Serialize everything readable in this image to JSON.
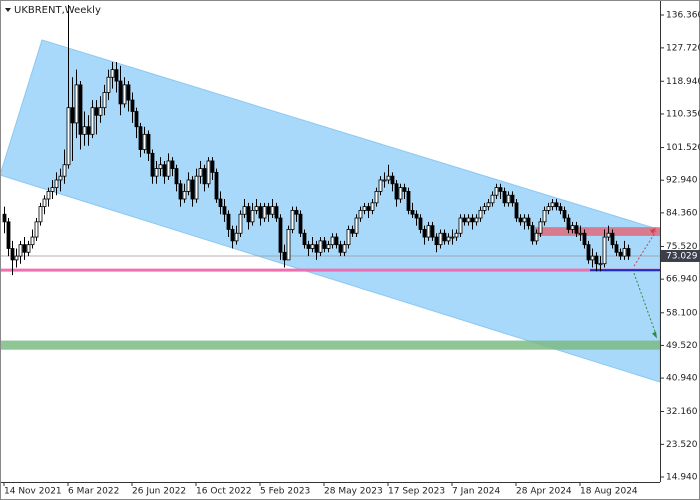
{
  "chart_data": {
    "type": "candlestick",
    "title": "UKBRENT,Weekly",
    "categories": [
      "14 Nov 2021",
      null,
      null,
      null,
      null,
      null,
      null,
      null,
      null,
      null,
      null,
      null,
      null,
      null,
      null,
      null,
      "6 Mar 2022",
      null,
      null,
      null,
      null,
      null,
      null,
      null,
      null,
      null,
      null,
      null,
      null,
      null,
      null,
      null,
      "26 Jun 2022",
      null,
      null,
      null,
      null,
      null,
      null,
      null,
      null,
      null,
      null,
      null,
      null,
      null,
      null,
      null,
      "16 Oct 2022",
      null,
      null,
      null,
      null,
      null,
      null,
      null,
      null,
      null,
      null,
      null,
      null,
      null,
      null,
      null,
      "5 Feb 2023",
      null,
      null,
      null,
      null,
      null,
      null,
      null,
      null,
      null,
      null,
      null,
      null,
      null,
      null,
      null,
      "28 May 2023",
      null,
      null,
      null,
      null,
      null,
      null,
      null,
      null,
      null,
      null,
      null,
      null,
      null,
      null,
      null,
      "17 Sep 2023",
      null,
      null,
      null,
      null,
      null,
      null,
      null,
      null,
      null,
      null,
      null,
      null,
      null,
      null,
      null,
      "7 Jan 2024",
      null,
      null,
      null,
      null,
      null,
      null,
      null,
      null,
      null,
      null,
      null,
      null,
      null,
      null,
      null,
      "28 Apr 2024",
      null,
      null,
      null,
      null,
      null,
      null,
      null,
      null,
      null,
      null,
      null,
      null,
      null,
      null,
      null,
      "18 Aug 2024",
      null,
      null,
      null,
      null,
      null,
      null,
      null,
      null,
      null,
      null,
      null,
      null
    ],
    "candles": [
      [
        84,
        86,
        79,
        82
      ],
      [
        82,
        83,
        73,
        75
      ],
      [
        75,
        77,
        68,
        72
      ],
      [
        72,
        75,
        70,
        73
      ],
      [
        73,
        77,
        71,
        76
      ],
      [
        76,
        78,
        72,
        74
      ],
      [
        74,
        77,
        73,
        76
      ],
      [
        76,
        80,
        75,
        78
      ],
      [
        78,
        83,
        77,
        82
      ],
      [
        82,
        87,
        81,
        86
      ],
      [
        86,
        89,
        84,
        88
      ],
      [
        88,
        91,
        86,
        90
      ],
      [
        90,
        93,
        88,
        91
      ],
      [
        91,
        95,
        89,
        93
      ],
      [
        93,
        96,
        90,
        94
      ],
      [
        94,
        101,
        92,
        97
      ],
      [
        97,
        139,
        96,
        112
      ],
      [
        112,
        120,
        98,
        108
      ],
      [
        108,
        122,
        104,
        118
      ],
      [
        118,
        119,
        101,
        105
      ],
      [
        105,
        111,
        102,
        107
      ],
      [
        107,
        110,
        102,
        105
      ],
      [
        105,
        114,
        104,
        112
      ],
      [
        112,
        114,
        105,
        110
      ],
      [
        110,
        115,
        108,
        112
      ],
      [
        112,
        118,
        110,
        116
      ],
      [
        116,
        122,
        114,
        120
      ],
      [
        120,
        124,
        117,
        122
      ],
      [
        122,
        124,
        116,
        119
      ],
      [
        119,
        123,
        110,
        113
      ],
      [
        113,
        120,
        112,
        118
      ],
      [
        118,
        119,
        111,
        114
      ],
      [
        114,
        116,
        108,
        111
      ],
      [
        111,
        112,
        104,
        107
      ],
      [
        107,
        108,
        99,
        101
      ],
      [
        101,
        107,
        100,
        105
      ],
      [
        105,
        106,
        98,
        100
      ],
      [
        100,
        101,
        92,
        94
      ],
      [
        94,
        98,
        92,
        96
      ],
      [
        96,
        99,
        94,
        97
      ],
      [
        97,
        98,
        92,
        94
      ],
      [
        94,
        100,
        93,
        98
      ],
      [
        98,
        99,
        94,
        96
      ],
      [
        96,
        97,
        90,
        92
      ],
      [
        92,
        93,
        86,
        88
      ],
      [
        88,
        92,
        87,
        90
      ],
      [
        90,
        95,
        89,
        93
      ],
      [
        93,
        94,
        86,
        88
      ],
      [
        88,
        96,
        87,
        94
      ],
      [
        94,
        98,
        92,
        96
      ],
      [
        96,
        97,
        90,
        92
      ],
      [
        92,
        99,
        91,
        98
      ],
      [
        98,
        99,
        93,
        95
      ],
      [
        95,
        96,
        87,
        88
      ],
      [
        88,
        90,
        84,
        86
      ],
      [
        86,
        88,
        82,
        84
      ],
      [
        84,
        85,
        78,
        80
      ],
      [
        80,
        81,
        75,
        77
      ],
      [
        77,
        81,
        76,
        79
      ],
      [
        79,
        85,
        78,
        84
      ],
      [
        84,
        88,
        83,
        86
      ],
      [
        86,
        87,
        80,
        82
      ],
      [
        82,
        87,
        81,
        85
      ],
      [
        85,
        88,
        84,
        86
      ],
      [
        86,
        87,
        81,
        83
      ],
      [
        83,
        87,
        82,
        86
      ],
      [
        86,
        87,
        82,
        84
      ],
      [
        84,
        88,
        83,
        86
      ],
      [
        86,
        87,
        82,
        83
      ],
      [
        83,
        84,
        72,
        74
      ],
      [
        74,
        76,
        70,
        72
      ],
      [
        72,
        81,
        72,
        80
      ],
      [
        80,
        86,
        79,
        85
      ],
      [
        85,
        86,
        82,
        84
      ],
      [
        84,
        85,
        78,
        79
      ],
      [
        79,
        80,
        75,
        76
      ],
      [
        76,
        77,
        73,
        75
      ],
      [
        75,
        78,
        74,
        76
      ],
      [
        76,
        77,
        72,
        74
      ],
      [
        74,
        78,
        73,
        77
      ],
      [
        77,
        78,
        74,
        75
      ],
      [
        75,
        77,
        74,
        76
      ],
      [
        76,
        79,
        75,
        78
      ],
      [
        78,
        79,
        75,
        76
      ],
      [
        76,
        77,
        73,
        74
      ],
      [
        74,
        77,
        73,
        76
      ],
      [
        76,
        81,
        75,
        80
      ],
      [
        80,
        81,
        78,
        79
      ],
      [
        79,
        84,
        78,
        83
      ],
      [
        83,
        86,
        82,
        85
      ],
      [
        85,
        87,
        84,
        86
      ],
      [
        86,
        87,
        83,
        85
      ],
      [
        85,
        88,
        84,
        87
      ],
      [
        87,
        91,
        86,
        90
      ],
      [
        90,
        94,
        89,
        93
      ],
      [
        93,
        95,
        91,
        93
      ],
      [
        93,
        97,
        92,
        94
      ],
      [
        94,
        95,
        90,
        92
      ],
      [
        92,
        93,
        86,
        88
      ],
      [
        88,
        92,
        87,
        91
      ],
      [
        91,
        92,
        88,
        90
      ],
      [
        90,
        91,
        84,
        85
      ],
      [
        85,
        87,
        83,
        84
      ],
      [
        84,
        85,
        81,
        83
      ],
      [
        83,
        84,
        79,
        80
      ],
      [
        80,
        81,
        76,
        78
      ],
      [
        78,
        82,
        77,
        81
      ],
      [
        81,
        82,
        77,
        78
      ],
      [
        78,
        79,
        74,
        76
      ],
      [
        76,
        80,
        75,
        79
      ],
      [
        79,
        80,
        76,
        77
      ],
      [
        77,
        79,
        76,
        78
      ],
      [
        78,
        80,
        76,
        78
      ],
      [
        78,
        80,
        77,
        79
      ],
      [
        79,
        84,
        78,
        83
      ],
      [
        83,
        84,
        81,
        82
      ],
      [
        82,
        84,
        81,
        83
      ],
      [
        83,
        84,
        80,
        82
      ],
      [
        82,
        84,
        81,
        83
      ],
      [
        83,
        86,
        82,
        85
      ],
      [
        85,
        87,
        84,
        86
      ],
      [
        86,
        88,
        85,
        87
      ],
      [
        87,
        90,
        86,
        89
      ],
      [
        89,
        92,
        88,
        91
      ],
      [
        91,
        92,
        88,
        90
      ],
      [
        90,
        91,
        86,
        87
      ],
      [
        87,
        90,
        86,
        89
      ],
      [
        89,
        90,
        86,
        87
      ],
      [
        87,
        88,
        82,
        83
      ],
      [
        83,
        84,
        81,
        82
      ],
      [
        82,
        84,
        80,
        83
      ],
      [
        83,
        84,
        80,
        81
      ],
      [
        81,
        82,
        76,
        77
      ],
      [
        77,
        80,
        76,
        79
      ],
      [
        79,
        83,
        78,
        82
      ],
      [
        82,
        86,
        81,
        85
      ],
      [
        85,
        87,
        84,
        86
      ],
      [
        86,
        88,
        85,
        87
      ],
      [
        87,
        88,
        85,
        86
      ],
      [
        86,
        87,
        84,
        85
      ],
      [
        85,
        86,
        82,
        83
      ],
      [
        83,
        84,
        79,
        80
      ],
      [
        80,
        82,
        79,
        81
      ],
      [
        81,
        82,
        78,
        79
      ],
      [
        79,
        81,
        77,
        79
      ],
      [
        79,
        80,
        75,
        76
      ],
      [
        76,
        77,
        71,
        72
      ],
      [
        72,
        75,
        70,
        73
      ],
      [
        73,
        74,
        69,
        71
      ],
      [
        71,
        73,
        69,
        71
      ],
      [
        71,
        80,
        70,
        78
      ],
      [
        78,
        81,
        77,
        79
      ],
      [
        79,
        80,
        75,
        76
      ],
      [
        76,
        77,
        73,
        74
      ],
      [
        74,
        75,
        72,
        73
      ],
      [
        73,
        77,
        72,
        75
      ],
      [
        75,
        76,
        72,
        73
      ]
    ],
    "ylim": [
      13.63,
      140.3
    ],
    "yticks": [
      {
        "value": 136.36,
        "label": "136.360"
      },
      {
        "value": 127.72,
        "label": "127.720"
      },
      {
        "value": 118.94,
        "label": "118.940"
      },
      {
        "value": 110.35,
        "label": "110.350"
      },
      {
        "value": 101.52,
        "label": "101.520"
      },
      {
        "value": 92.94,
        "label": "92.940"
      },
      {
        "value": 84.36,
        "label": "84.360"
      },
      {
        "value": 75.52,
        "label": "75.520"
      },
      {
        "value": 66.94,
        "label": "66.940"
      },
      {
        "value": 58.1,
        "label": "58.100"
      },
      {
        "value": 49.52,
        "label": "49.520"
      },
      {
        "value": 40.94,
        "label": "40.940"
      },
      {
        "value": 32.16,
        "label": "32.160"
      },
      {
        "value": 23.52,
        "label": "23.520"
      },
      {
        "value": 14.94,
        "label": "14.940"
      }
    ],
    "last_price": 73.029,
    "channel": {
      "upper": [
        129.8,
        79.9
      ],
      "lower": [
        94.3,
        39.9
      ],
      "color": "#a8d8fa"
    },
    "hlines": [
      {
        "value": 69.3,
        "color": "#f06fb0"
      },
      {
        "value": 69.3,
        "color": "#1a2fbf"
      }
    ],
    "bands": [
      {
        "from": 78.3,
        "to": 80.6,
        "color": "#e06b7a"
      },
      {
        "from": 48.4,
        "to": 50.8,
        "color": "#7dbb84"
      }
    ],
    "grid": false
  }
}
